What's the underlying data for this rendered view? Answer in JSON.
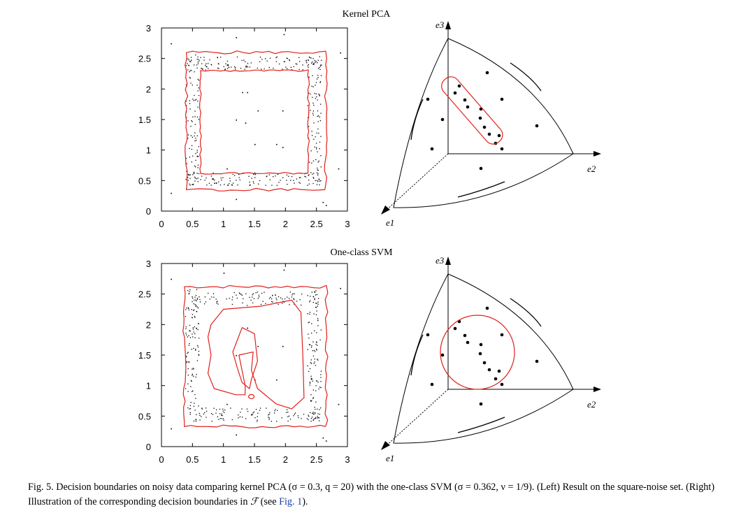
{
  "figure": {
    "top_title": "Kernel PCA",
    "bottom_title": "One-class SVM",
    "axis": {
      "x_ticks": [
        "0",
        "0.5",
        "1",
        "1.5",
        "2",
        "2.5",
        "3"
      ],
      "y_ticks": [
        "0",
        "0.5",
        "1",
        "1.5",
        "2",
        "2.5",
        "3"
      ]
    },
    "feature_axes": {
      "e1": "e1",
      "e2": "e2",
      "e3": "e3"
    },
    "colors": {
      "boundary": "#e0201b",
      "points": "#000000"
    }
  },
  "chart_data": [
    {
      "type": "scatter",
      "title": "Kernel PCA",
      "xlim": [
        0,
        3
      ],
      "ylim": [
        0,
        3
      ],
      "description_series": [
        {
          "name": "noise",
          "points": [
            [
              0.15,
              2.75
            ],
            [
              1.2,
              2.85
            ],
            [
              1.97,
              2.9
            ],
            [
              2.88,
              2.6
            ],
            [
              1.3,
              1.95
            ],
            [
              1.38,
              1.95
            ],
            [
              1.55,
              1.65
            ],
            [
              1.2,
              1.5
            ],
            [
              1.95,
              1.65
            ],
            [
              1.5,
              1.1
            ],
            [
              1.85,
              1.1
            ],
            [
              1.95,
              1.05
            ],
            [
              1.05,
              0.7
            ],
            [
              2.85,
              0.7
            ],
            [
              0.15,
              0.3
            ],
            [
              1.2,
              0.2
            ],
            [
              2.6,
              0.15
            ],
            [
              2.65,
              0.1
            ],
            [
              1.35,
              1.45
            ]
          ]
        }
      ],
      "boundary": "ring"
    },
    {
      "type": "scatter",
      "title": "One-class SVM",
      "xlim": [
        0,
        3
      ],
      "ylim": [
        0,
        3
      ],
      "description_series": [
        {
          "name": "noise",
          "points": [
            [
              0.15,
              2.75
            ],
            [
              1.0,
              2.85
            ],
            [
              1.97,
              2.9
            ],
            [
              2.88,
              2.6
            ],
            [
              1.38,
              1.95
            ],
            [
              1.55,
              1.65
            ],
            [
              1.95,
              1.65
            ],
            [
              1.2,
              1.5
            ],
            [
              1.5,
              1.1
            ],
            [
              1.85,
              1.1
            ],
            [
              1.05,
              0.7
            ],
            [
              2.85,
              0.7
            ],
            [
              0.15,
              0.3
            ],
            [
              1.2,
              0.2
            ],
            [
              2.6,
              0.15
            ],
            [
              2.65,
              0.1
            ]
          ]
        }
      ],
      "boundary": "ring-with-inner-blob"
    }
  ],
  "caption": {
    "label": "Fig. 5.",
    "text_1": " Decision boundaries on noisy data comparing kernel PCA (σ = 0.3, q = 20) with the one-class SVM (σ = 0.362, ν = 1/9). (Left) Result on the square-noise set. (Right) Illustration of the corresponding decision boundaries in ",
    "script_f": "ℱ",
    "text_2": " (see ",
    "ref": "Fig. 1",
    "text_3": ")."
  }
}
